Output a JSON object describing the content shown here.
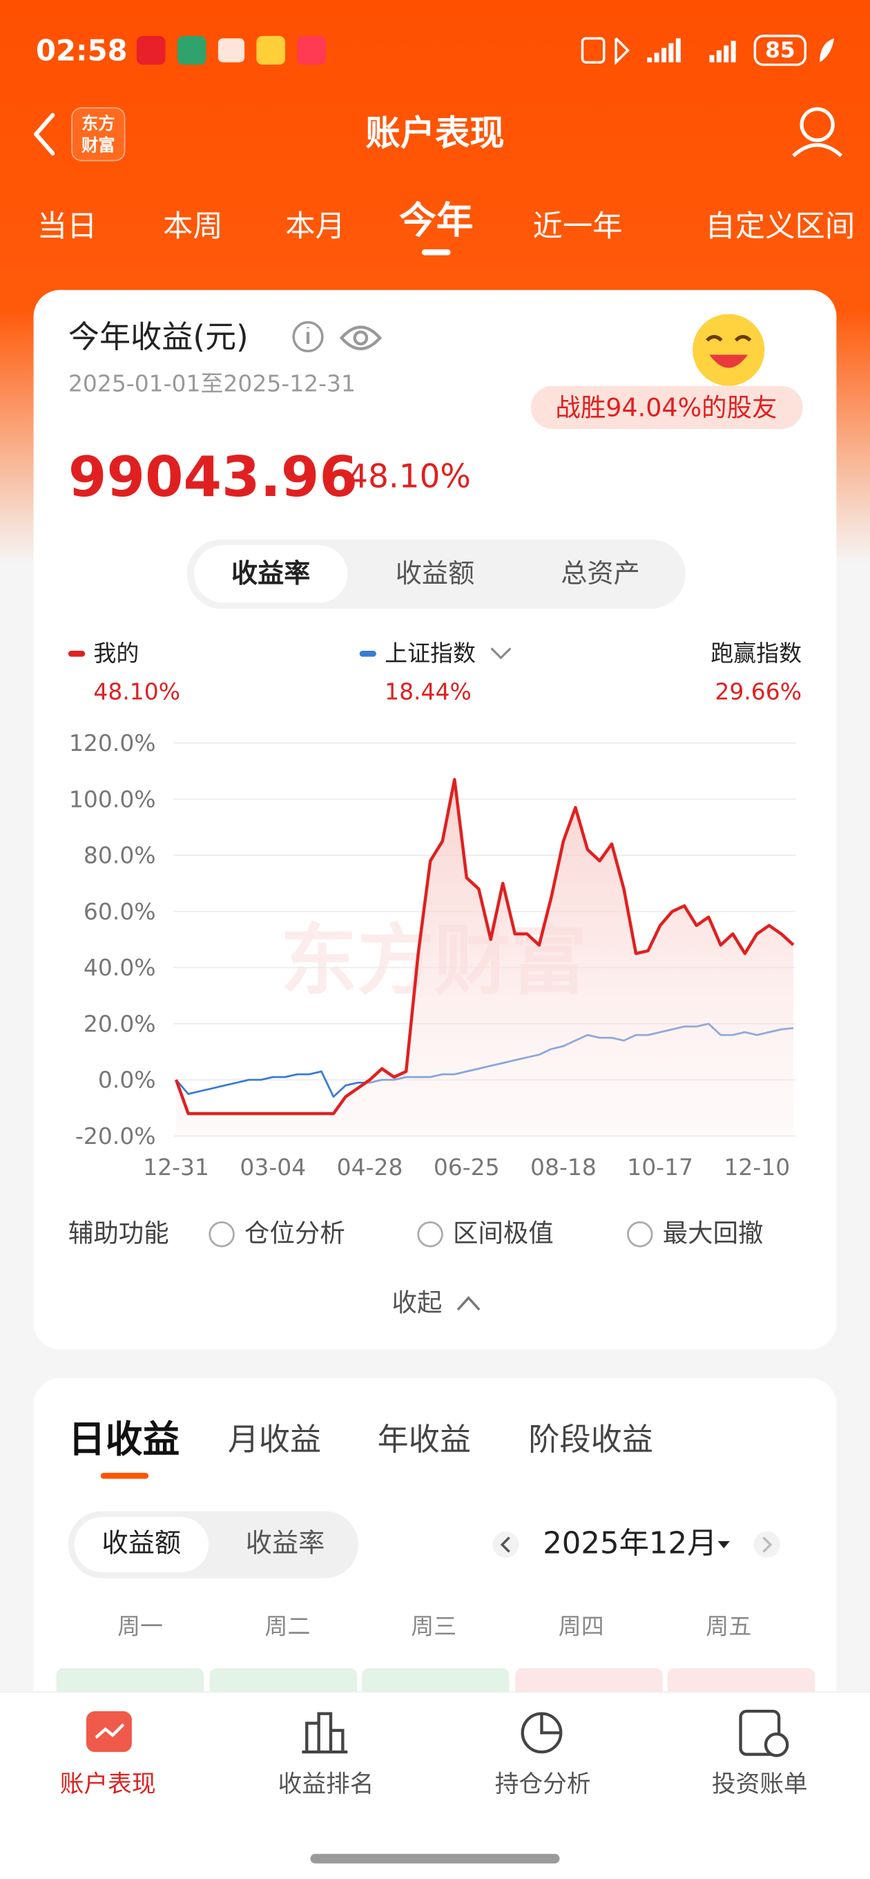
{
  "status_bar": {
    "time": "02:58",
    "battery": "85"
  },
  "header": {
    "logo": [
      "东方",
      "财富"
    ],
    "title": "账户表现"
  },
  "period_tabs": {
    "items": [
      "当日",
      "本周",
      "本月",
      "今年",
      "近一年",
      "自定义区间"
    ],
    "active": 3
  },
  "summary": {
    "title": "今年收益(元)",
    "date_range": "2025-01-01至2025-12-31",
    "badge": "战胜94.04%的股友",
    "amount": "99043.96",
    "rate": "48.10%"
  },
  "metric_switch": {
    "items": [
      "收益率",
      "收益额",
      "总资产"
    ],
    "active": 0
  },
  "chart_data": {
    "type": "line",
    "categories": [
      "12-31",
      null,
      null,
      null,
      null,
      null,
      null,
      null,
      "03-04",
      null,
      null,
      null,
      null,
      null,
      null,
      null,
      "04-28",
      null,
      null,
      null,
      null,
      null,
      null,
      null,
      "06-25",
      null,
      null,
      null,
      null,
      null,
      null,
      null,
      "08-18",
      null,
      null,
      null,
      null,
      null,
      null,
      null,
      "10-17",
      null,
      null,
      null,
      null,
      null,
      null,
      null,
      "12-10",
      null,
      null,
      null
    ],
    "series": [
      {
        "name": "我的",
        "color": "#e02020",
        "summary": "48.10%",
        "fill": true,
        "values": [
          0,
          -12,
          -12,
          -12,
          -12,
          -12,
          -12,
          -12,
          -12,
          -12,
          -12,
          -12,
          -12,
          -12,
          -6,
          -3,
          0,
          4,
          1,
          3,
          45,
          78,
          85,
          107,
          72,
          68,
          50,
          70,
          52,
          52,
          48,
          65,
          85,
          97,
          82,
          78,
          84,
          68,
          45,
          46,
          55,
          60,
          62,
          55,
          58,
          48,
          52,
          45,
          52,
          55,
          52,
          48.1
        ]
      },
      {
        "name": "上证指数",
        "color": "#3a7bd5",
        "summary": "18.44%",
        "fill": false,
        "values": [
          0,
          -5,
          -4,
          -3,
          -2,
          -1,
          0,
          0,
          1,
          1,
          2,
          2,
          3,
          -6,
          -2,
          -1,
          -1,
          0,
          0,
          1,
          1,
          1,
          2,
          2,
          3,
          4,
          5,
          6,
          7,
          8,
          9,
          11,
          12,
          14,
          16,
          15,
          15,
          14,
          16,
          16,
          17,
          18,
          19,
          19,
          20,
          16,
          16,
          17,
          16,
          17,
          18,
          18.44
        ]
      }
    ],
    "excess": {
      "label": "跑赢指数",
      "value": "29.66%"
    },
    "ylim": [
      -20,
      120
    ],
    "yticks": [
      {
        "value": -20,
        "label": "-20.0%"
      },
      {
        "value": 0,
        "label": "0.0%"
      },
      {
        "value": 20,
        "label": "20.0%"
      },
      {
        "value": 40,
        "label": "40.0%"
      },
      {
        "value": 60,
        "label": "60.0%"
      },
      {
        "value": 80,
        "label": "80.0%"
      },
      {
        "value": 100,
        "label": "100.0%"
      },
      {
        "value": 120,
        "label": "120.0%"
      }
    ],
    "grid": true,
    "watermark": "东方财富"
  },
  "tools": {
    "label": "辅助功能",
    "options": [
      "仓位分析",
      "区间极值",
      "最大回撤"
    ],
    "collapse": "收起"
  },
  "returns": {
    "tabs": [
      "日收益",
      "月收益",
      "年收益",
      "阶段收益"
    ],
    "active_tab": 0,
    "toggle": [
      "收益额",
      "收益率"
    ],
    "active_toggle": 0,
    "month": "2025年12月",
    "weekdays": [
      "周一",
      "周二",
      "周三",
      "周四",
      "周五"
    ]
  },
  "bottom_nav": {
    "items": [
      "账户表现",
      "收益排名",
      "持仓分析",
      "投资账单"
    ],
    "active": 0
  }
}
